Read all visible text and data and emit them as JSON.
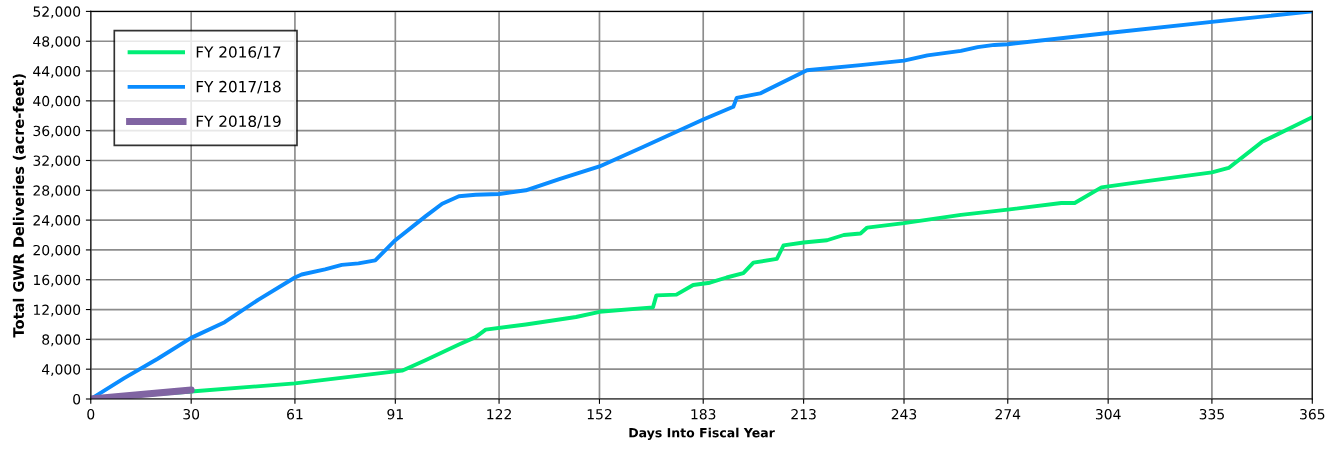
{
  "chart_data": {
    "type": "line",
    "xlabel": "Days Into Fiscal Year",
    "ylabel": "Total GWR Deliveries (acre-feet)",
    "xlim": [
      0,
      365
    ],
    "xticks": [
      0,
      30,
      61,
      91,
      122,
      152,
      183,
      213,
      243,
      274,
      304,
      335,
      365
    ],
    "ylim": [
      0,
      52000
    ],
    "yticks": [
      {
        "value": 0,
        "label": "0"
      },
      {
        "value": 4000,
        "label": "4,000"
      },
      {
        "value": 8000,
        "label": "8,000"
      },
      {
        "value": 12000,
        "label": "12,000"
      },
      {
        "value": 16000,
        "label": "16,000"
      },
      {
        "value": 20000,
        "label": "20,000"
      },
      {
        "value": 24000,
        "label": "24,000"
      },
      {
        "value": 28000,
        "label": "28,000"
      },
      {
        "value": 32000,
        "label": "32,000"
      },
      {
        "value": 36000,
        "label": "36,000"
      },
      {
        "value": 40000,
        "label": "40,000"
      },
      {
        "value": 44000,
        "label": "44,000"
      },
      {
        "value": 48000,
        "label": "48,000"
      },
      {
        "value": 52000,
        "label": "52,000"
      }
    ],
    "grid": true,
    "legend": "top left",
    "marker": "none",
    "line_style": "solid",
    "series": [
      {
        "name": "FY 2016/17",
        "color": "#00ee76",
        "x": [
          0,
          30,
          61,
          91,
          93,
          100,
          110,
          115,
          118,
          130,
          145,
          152,
          168,
          169,
          175,
          180,
          185,
          190,
          195,
          198,
          205,
          207,
          213,
          220,
          225,
          230,
          232,
          243,
          260,
          274,
          290,
          294,
          302,
          310,
          335,
          340,
          350,
          365
        ],
        "values": [
          0,
          1000,
          2100,
          3700,
          3800,
          5200,
          7300,
          8300,
          9300,
          10000,
          11000,
          11700,
          12300,
          13900,
          14000,
          15300,
          15600,
          16300,
          16900,
          18300,
          18800,
          20600,
          21000,
          21300,
          22000,
          22200,
          23000,
          23600,
          24700,
          25400,
          26300,
          26300,
          28400,
          28900,
          30400,
          31000,
          34500,
          37800
        ]
      },
      {
        "name": "FY 2017/18",
        "color": "#0a8cff",
        "x": [
          0,
          10,
          20,
          30,
          40,
          50,
          61,
          63,
          70,
          75,
          80,
          85,
          91,
          100,
          105,
          110,
          115,
          122,
          130,
          140,
          152,
          165,
          183,
          192,
          193,
          200,
          214,
          230,
          243,
          250,
          260,
          265,
          270,
          274,
          304,
          335,
          365
        ],
        "values": [
          0,
          2800,
          5400,
          8200,
          10300,
          13300,
          16300,
          16700,
          17400,
          18000,
          18200,
          18600,
          21300,
          24500,
          26200,
          27200,
          27400,
          27500,
          28000,
          29500,
          31200,
          33800,
          37500,
          39200,
          40400,
          41000,
          44100,
          44800,
          45400,
          46100,
          46700,
          47200,
          47500,
          47600,
          49100,
          50600,
          52000
        ]
      },
      {
        "name": "FY 2018/19",
        "color": "#8064a2",
        "x": [
          0,
          10,
          20,
          30
        ],
        "values": [
          0,
          400,
          800,
          1200
        ]
      }
    ]
  }
}
